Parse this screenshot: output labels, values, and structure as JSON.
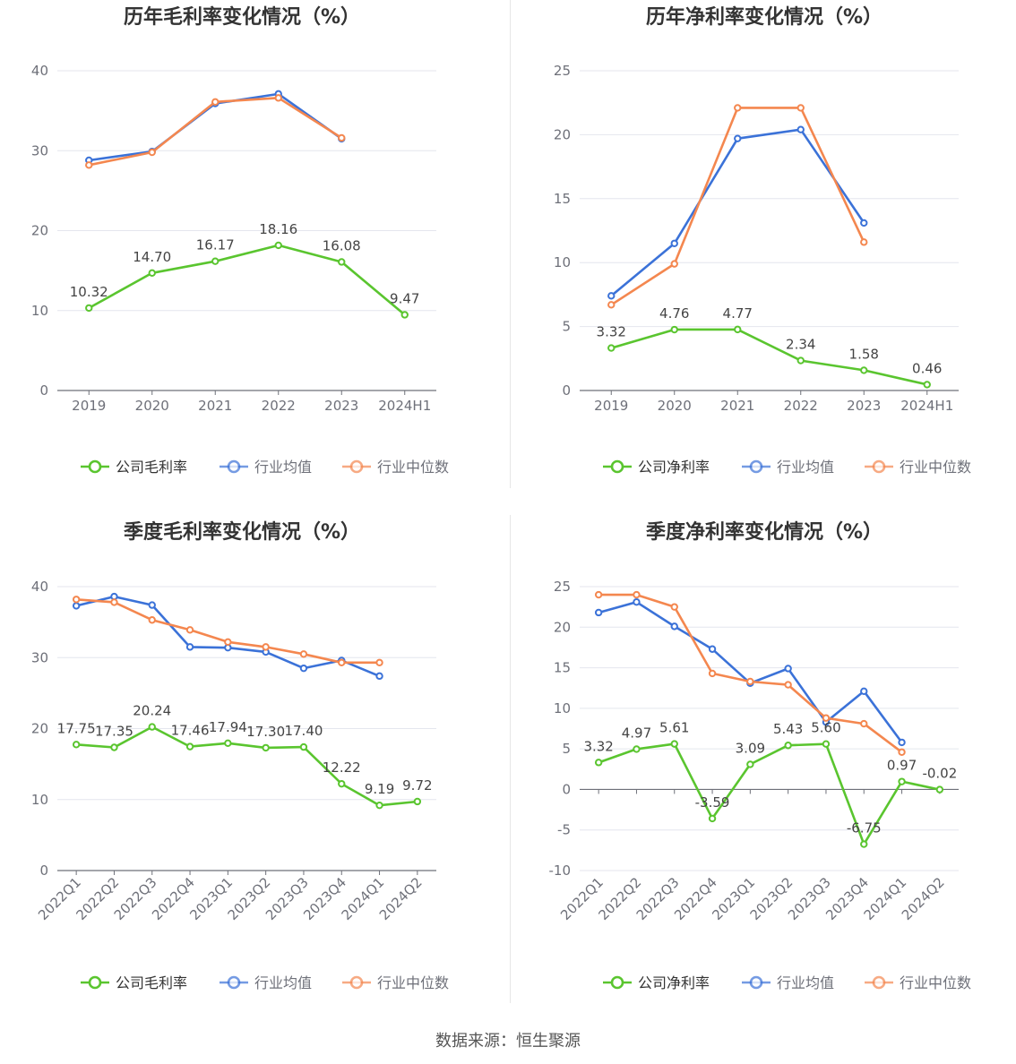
{
  "source": "数据来源：恒生聚源",
  "legend_labels": {
    "company_gross": "公司毛利率",
    "company_net": "公司净利率",
    "industry_avg": "行业均值",
    "industry_median": "行业中位数"
  },
  "colors": {
    "company": "#5ac52f",
    "industry_avg": "#3b72d8",
    "industry_median": "#f4874f"
  },
  "chart_data": [
    {
      "id": "annual-gross",
      "type": "line",
      "title": "历年毛利率变化情况（%）",
      "categories": [
        "2019",
        "2020",
        "2021",
        "2022",
        "2023",
        "2024H1"
      ],
      "ylim": [
        0,
        40
      ],
      "yticks": [
        0,
        10,
        20,
        30,
        40
      ],
      "grid": true,
      "legend": "bottom",
      "series": [
        {
          "name": "公司毛利率",
          "color": "#5ac52f",
          "values": [
            10.32,
            14.7,
            16.17,
            18.16,
            16.08,
            9.47
          ],
          "labels": [
            "10.32",
            "14.70",
            "16.17",
            "18.16",
            "16.08",
            "9.47"
          ]
        },
        {
          "name": "行业均值",
          "color": "#3b72d8",
          "values": [
            28.8,
            29.9,
            35.9,
            37.1,
            31.5,
            null
          ]
        },
        {
          "name": "行业中位数",
          "color": "#f4874f",
          "values": [
            28.2,
            29.8,
            36.1,
            36.6,
            31.6,
            null
          ]
        }
      ]
    },
    {
      "id": "annual-net",
      "type": "line",
      "title": "历年净利率变化情况（%）",
      "categories": [
        "2019",
        "2020",
        "2021",
        "2022",
        "2023",
        "2024H1"
      ],
      "ylim": [
        0,
        25
      ],
      "yticks": [
        0,
        5,
        10,
        15,
        20,
        25
      ],
      "grid": true,
      "legend": "bottom",
      "series": [
        {
          "name": "公司净利率",
          "color": "#5ac52f",
          "values": [
            3.32,
            4.76,
            4.77,
            2.34,
            1.58,
            0.46
          ],
          "labels": [
            "3.32",
            "4.76",
            "4.77",
            "2.34",
            "1.58",
            "0.46"
          ]
        },
        {
          "name": "行业均值",
          "color": "#3b72d8",
          "values": [
            7.4,
            11.5,
            19.7,
            20.4,
            13.1,
            null
          ]
        },
        {
          "name": "行业中位数",
          "color": "#f4874f",
          "values": [
            6.7,
            9.9,
            22.1,
            22.1,
            11.6,
            null
          ]
        }
      ]
    },
    {
      "id": "quarterly-gross",
      "type": "line",
      "title": "季度毛利率变化情况（%）",
      "categories": [
        "2022Q1",
        "2022Q2",
        "2022Q3",
        "2022Q4",
        "2023Q1",
        "2023Q2",
        "2023Q3",
        "2023Q4",
        "2024Q1",
        "2024Q2"
      ],
      "ylim": [
        0,
        40
      ],
      "yticks": [
        0,
        10,
        20,
        30,
        40
      ],
      "grid": true,
      "legend": "bottom",
      "series": [
        {
          "name": "公司毛利率",
          "color": "#5ac52f",
          "values": [
            17.75,
            17.35,
            20.24,
            17.46,
            17.94,
            17.3,
            17.4,
            12.22,
            9.19,
            9.72
          ],
          "labels": [
            "17.75",
            "17.35",
            "20.24",
            "17.46",
            "17.94",
            "17.30",
            "17.40",
            "12.22",
            "9.19",
            "9.72"
          ]
        },
        {
          "name": "行业均值",
          "color": "#3b72d8",
          "values": [
            37.3,
            38.6,
            37.4,
            31.5,
            31.4,
            30.8,
            28.5,
            29.6,
            27.4,
            null
          ]
        },
        {
          "name": "行业中位数",
          "color": "#f4874f",
          "values": [
            38.2,
            37.8,
            35.3,
            33.9,
            32.2,
            31.5,
            30.5,
            29.3,
            29.3,
            null
          ]
        }
      ]
    },
    {
      "id": "quarterly-net",
      "type": "line",
      "title": "季度净利率变化情况（%）",
      "categories": [
        "2022Q1",
        "2022Q2",
        "2022Q3",
        "2022Q4",
        "2023Q1",
        "2023Q2",
        "2023Q3",
        "2023Q4",
        "2024Q1",
        "2024Q2"
      ],
      "ylim": [
        -10,
        25
      ],
      "yticks": [
        -10,
        -5,
        0,
        5,
        10,
        15,
        20,
        25
      ],
      "grid": true,
      "legend": "bottom",
      "series": [
        {
          "name": "公司净利率",
          "color": "#5ac52f",
          "values": [
            3.32,
            4.97,
            5.61,
            -3.59,
            3.09,
            5.43,
            5.6,
            -6.75,
            0.97,
            -0.02
          ],
          "labels": [
            "3.32",
            "4.97",
            "5.61",
            "-3.59",
            "3.09",
            "5.43",
            "5.60",
            "-6.75",
            "0.97",
            "-0.02"
          ]
        },
        {
          "name": "行业均值",
          "color": "#3b72d8",
          "values": [
            21.8,
            23.1,
            20.1,
            17.3,
            13.1,
            14.9,
            8.3,
            12.1,
            5.8,
            null
          ]
        },
        {
          "name": "行业中位数",
          "color": "#f4874f",
          "values": [
            24.0,
            24.0,
            22.5,
            14.3,
            13.3,
            12.9,
            8.8,
            8.1,
            4.6,
            null
          ]
        }
      ]
    }
  ]
}
